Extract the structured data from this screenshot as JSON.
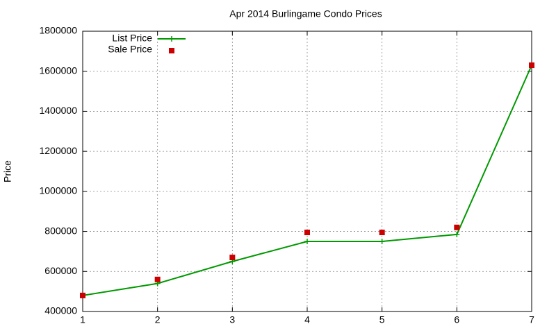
{
  "chart_data": {
    "type": "line",
    "title": "Apr 2014 Burlingame Condo Prices",
    "y_label": "Price",
    "x": [
      1,
      2,
      3,
      4,
      5,
      6,
      7
    ],
    "series": [
      {
        "name": "List Price",
        "color": "#009900",
        "style": "linespoints",
        "values": [
          480000,
          540000,
          650000,
          750000,
          750000,
          785000,
          1630000
        ]
      },
      {
        "name": "Sale Price",
        "color": "#cc0000",
        "style": "points",
        "values": [
          480000,
          560000,
          670000,
          795000,
          795000,
          820000,
          1630000
        ]
      }
    ],
    "xlim": [
      1,
      7
    ],
    "xticks": [
      1,
      2,
      3,
      4,
      5,
      6,
      7
    ],
    "ylim": [
      400000,
      1800000
    ],
    "yticks": [
      400000,
      600000,
      800000,
      1000000,
      1200000,
      1400000,
      1600000,
      1800000
    ],
    "grid": true,
    "legend": "top-left"
  }
}
